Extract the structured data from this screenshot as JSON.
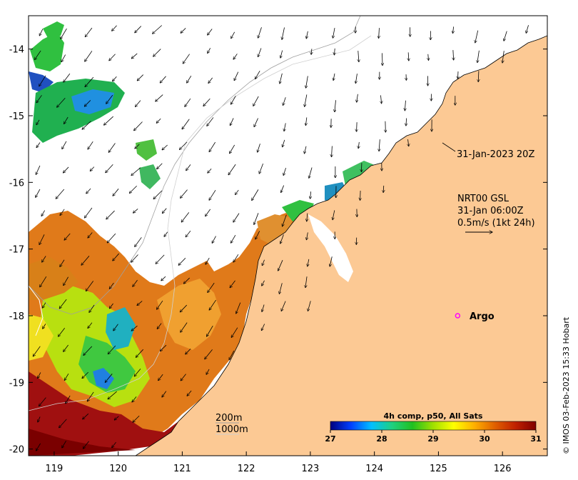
{
  "map": {
    "lon_range": [
      118.6,
      126.7
    ],
    "lat_range": [
      -20.1,
      -13.5
    ],
    "x_ticks": [
      119,
      120,
      121,
      122,
      123,
      124,
      125,
      126
    ],
    "y_ticks": [
      -14,
      -15,
      -16,
      -17,
      -18,
      -19,
      -20
    ],
    "land_color": "#fcc994",
    "frame_color": "#000000"
  },
  "annotations": {
    "sat_time": "31-Jan-2023 20Z",
    "current_model": "NRT00 GSL",
    "current_time": "31-Jan 06:00Z",
    "current_scale": "0.5m/s (1kt 24h)",
    "contour_200": "200m",
    "contour_1000": "1000m"
  },
  "argo": {
    "label": "Argo",
    "lon": 125.3,
    "lat": -18.0,
    "marker_color": "#ff00ff"
  },
  "colorbar": {
    "title": "4h comp, p50, All Sats",
    "min": 27,
    "max": 31,
    "ticks": [
      "27",
      "28",
      "29",
      "30",
      "31"
    ],
    "colors": [
      "#00007f",
      "#0040ff",
      "#00bfff",
      "#20d080",
      "#20c020",
      "#a0e000",
      "#ffff00",
      "#ffb000",
      "#e06000",
      "#c02000",
      "#800000"
    ]
  },
  "credit": "© IMOS 03-Feb-2023 15:33 Hobart"
}
